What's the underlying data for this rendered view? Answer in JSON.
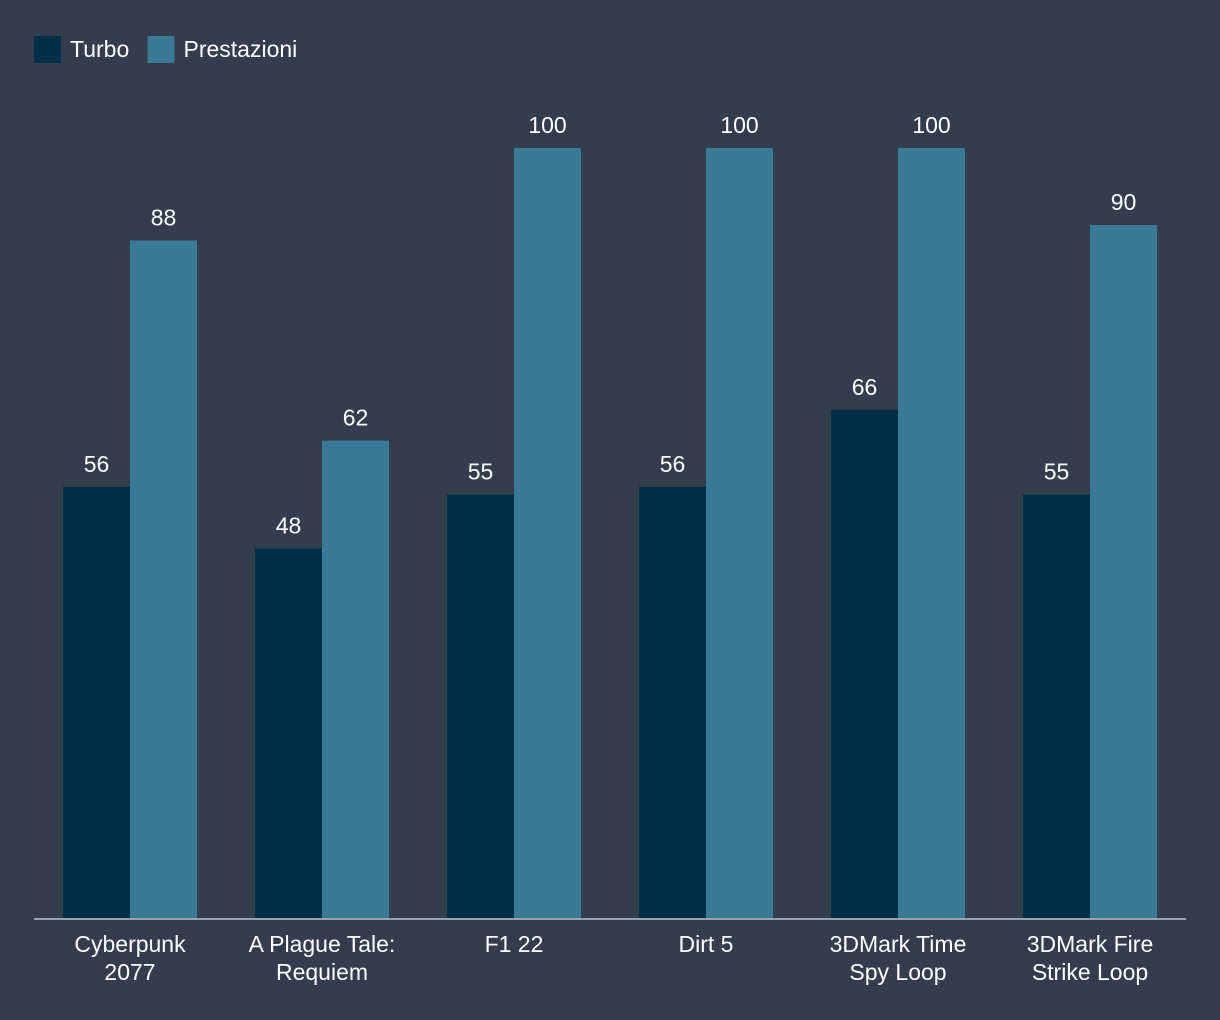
{
  "background_color": "#333d4d",
  "text_color": "#ffffff",
  "axis_color": "#9aa3ad",
  "legend": {
    "position": "top-left",
    "items": [
      {
        "label": "Turbo",
        "color": "#003049"
      },
      {
        "label": "Prestazioni",
        "color": "#3a7a96"
      }
    ]
  },
  "chart_data": {
    "type": "bar",
    "title": "",
    "xlabel": "",
    "ylabel": "",
    "ylim": [
      0,
      100
    ],
    "grid": false,
    "categories": [
      [
        "Cyberpunk",
        "2077"
      ],
      [
        "A Plague Tale:",
        "Requiem"
      ],
      [
        "F1 22"
      ],
      [
        "Dirt 5"
      ],
      [
        "3DMark Time",
        "Spy Loop"
      ],
      [
        "3DMark Fire",
        "Strike Loop"
      ]
    ],
    "series": [
      {
        "name": "Turbo",
        "color": "#003049",
        "values": [
          56,
          48,
          55,
          56,
          66,
          55
        ]
      },
      {
        "name": "Prestazioni",
        "color": "#3a7a96",
        "values": [
          88,
          62,
          100,
          100,
          100,
          90
        ]
      }
    ]
  }
}
